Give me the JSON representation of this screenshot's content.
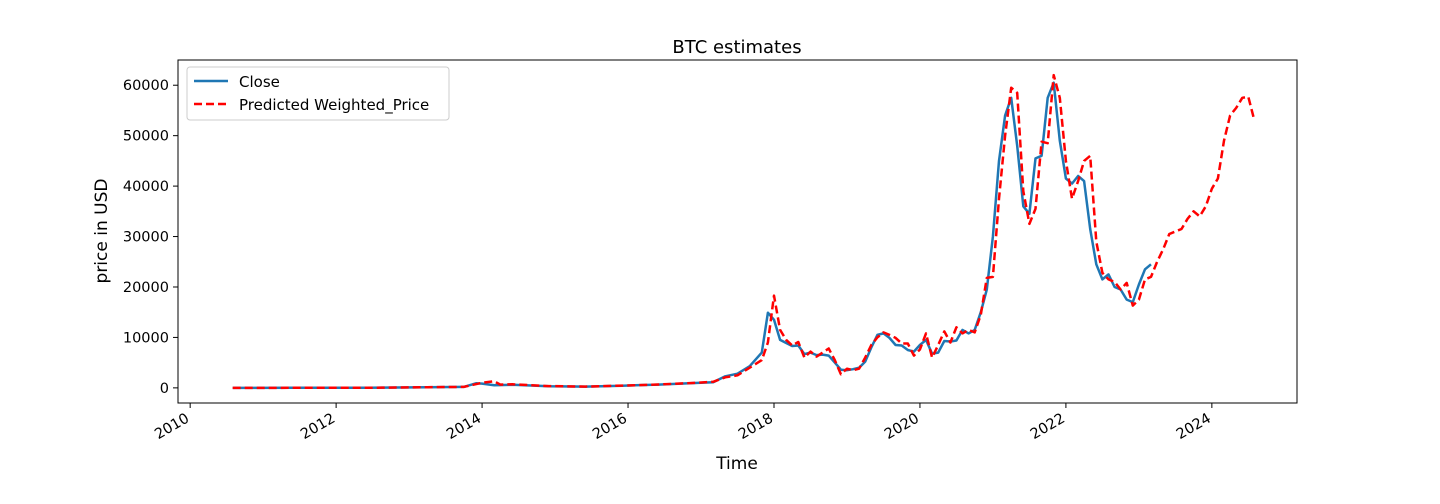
{
  "chart_data": {
    "type": "line",
    "title": "BTC estimates",
    "xlabel": "Time",
    "ylabel": "price in USD",
    "xlim": [
      "2009-11-01",
      "2025-03-01"
    ],
    "ylim": [
      -3000,
      65000
    ],
    "x_ticks": [
      "2010",
      "2012",
      "2014",
      "2016",
      "2018",
      "2020",
      "2022",
      "2024"
    ],
    "y_ticks": [
      "0",
      "10000",
      "20000",
      "30000",
      "40000",
      "50000",
      "60000"
    ],
    "grid": false,
    "legend_position": "top-left",
    "series": [
      {
        "name": "Close",
        "color": "#1f77b4",
        "style": "solid",
        "points": [
          [
            "2010-08-01",
            0
          ],
          [
            "2011-06-01",
            15
          ],
          [
            "2012-06-01",
            6
          ],
          [
            "2013-04-01",
            130
          ],
          [
            "2013-10-01",
            200
          ],
          [
            "2013-12-01",
            900
          ],
          [
            "2014-01-01",
            850
          ],
          [
            "2014-03-01",
            500
          ],
          [
            "2014-06-01",
            600
          ],
          [
            "2014-12-01",
            320
          ],
          [
            "2015-06-01",
            250
          ],
          [
            "2015-12-01",
            430
          ],
          [
            "2016-06-01",
            650
          ],
          [
            "2016-12-01",
            960
          ],
          [
            "2017-03-01",
            1100
          ],
          [
            "2017-05-01",
            2300
          ],
          [
            "2017-07-01",
            2800
          ],
          [
            "2017-09-01",
            4300
          ],
          [
            "2017-11-01",
            7000
          ],
          [
            "2017-12-01",
            14900
          ],
          [
            "2018-01-01",
            13500
          ],
          [
            "2018-02-01",
            9500
          ],
          [
            "2018-03-01",
            8900
          ],
          [
            "2018-04-01",
            8300
          ],
          [
            "2018-05-01",
            8400
          ],
          [
            "2018-06-01",
            6700
          ],
          [
            "2018-07-01",
            7000
          ],
          [
            "2018-08-01",
            6500
          ],
          [
            "2018-09-01",
            6600
          ],
          [
            "2018-10-01",
            6400
          ],
          [
            "2018-11-01",
            5000
          ],
          [
            "2018-12-01",
            3600
          ],
          [
            "2019-01-01",
            3500
          ],
          [
            "2019-02-01",
            3700
          ],
          [
            "2019-03-01",
            4000
          ],
          [
            "2019-04-01",
            5200
          ],
          [
            "2019-05-01",
            8000
          ],
          [
            "2019-06-01",
            10500
          ],
          [
            "2019-07-01",
            10800
          ],
          [
            "2019-08-01",
            9900
          ],
          [
            "2019-09-01",
            8500
          ],
          [
            "2019-10-01",
            8400
          ],
          [
            "2019-11-01",
            7500
          ],
          [
            "2019-12-01",
            7200
          ],
          [
            "2020-01-01",
            8500
          ],
          [
            "2020-02-01",
            9500
          ],
          [
            "2020-03-01",
            6800
          ],
          [
            "2020-04-01",
            7000
          ],
          [
            "2020-05-01",
            9300
          ],
          [
            "2020-06-01",
            9200
          ],
          [
            "2020-07-01",
            9400
          ],
          [
            "2020-08-01",
            11500
          ],
          [
            "2020-09-01",
            10800
          ],
          [
            "2020-10-01",
            11500
          ],
          [
            "2020-11-01",
            15000
          ],
          [
            "2020-12-01",
            19500
          ],
          [
            "2021-01-01",
            30000
          ],
          [
            "2021-02-01",
            45000
          ],
          [
            "2021-03-01",
            54000
          ],
          [
            "2021-04-01",
            57500
          ],
          [
            "2021-05-01",
            48000
          ],
          [
            "2021-06-01",
            36000
          ],
          [
            "2021-07-01",
            34500
          ],
          [
            "2021-08-01",
            45500
          ],
          [
            "2021-09-01",
            46000
          ],
          [
            "2021-10-01",
            57500
          ],
          [
            "2021-11-01",
            60500
          ],
          [
            "2021-12-01",
            49000
          ],
          [
            "2022-01-01",
            41500
          ],
          [
            "2022-02-01",
            40500
          ],
          [
            "2022-03-01",
            42000
          ],
          [
            "2022-04-01",
            41000
          ],
          [
            "2022-05-01",
            31500
          ],
          [
            "2022-06-01",
            24500
          ],
          [
            "2022-07-01",
            21500
          ],
          [
            "2022-08-01",
            22500
          ],
          [
            "2022-09-01",
            20000
          ],
          [
            "2022-10-01",
            19500
          ],
          [
            "2022-11-01",
            17500
          ],
          [
            "2022-12-01",
            17000
          ],
          [
            "2023-01-01",
            20500
          ],
          [
            "2023-02-01",
            23500
          ],
          [
            "2023-03-01",
            24500
          ]
        ]
      },
      {
        "name": "Predicted Weighted_Price",
        "color": "#ff0000",
        "style": "dashed",
        "points": [
          [
            "2010-08-01",
            0
          ],
          [
            "2011-06-01",
            15
          ],
          [
            "2012-06-01",
            6
          ],
          [
            "2013-04-01",
            130
          ],
          [
            "2013-10-01",
            200
          ],
          [
            "2014-01-01",
            1000
          ],
          [
            "2014-03-01",
            1300
          ],
          [
            "2014-04-01",
            650
          ],
          [
            "2014-06-01",
            700
          ],
          [
            "2014-12-01",
            350
          ],
          [
            "2015-06-01",
            260
          ],
          [
            "2015-12-01",
            440
          ],
          [
            "2016-06-01",
            660
          ],
          [
            "2016-12-01",
            980
          ],
          [
            "2017-03-01",
            1200
          ],
          [
            "2017-05-01",
            2100
          ],
          [
            "2017-07-01",
            2500
          ],
          [
            "2017-09-01",
            4000
          ],
          [
            "2017-11-01",
            5500
          ],
          [
            "2017-12-01",
            9000
          ],
          [
            "2018-01-01",
            18300
          ],
          [
            "2018-02-01",
            11500
          ],
          [
            "2018-03-01",
            9500
          ],
          [
            "2018-04-01",
            8400
          ],
          [
            "2018-05-01",
            9100
          ],
          [
            "2018-06-01",
            6000
          ],
          [
            "2018-07-01",
            7200
          ],
          [
            "2018-08-01",
            6200
          ],
          [
            "2018-09-01",
            7000
          ],
          [
            "2018-10-01",
            7800
          ],
          [
            "2018-11-01",
            5500
          ],
          [
            "2018-12-01",
            2700
          ],
          [
            "2019-01-01",
            3800
          ],
          [
            "2019-02-01",
            3500
          ],
          [
            "2019-03-01",
            3800
          ],
          [
            "2019-04-01",
            6000
          ],
          [
            "2019-05-01",
            8500
          ],
          [
            "2019-06-01",
            10000
          ],
          [
            "2019-07-01",
            11000
          ],
          [
            "2019-08-01",
            10500
          ],
          [
            "2019-09-01",
            9900
          ],
          [
            "2019-10-01",
            8800
          ],
          [
            "2019-11-01",
            8800
          ],
          [
            "2019-12-01",
            6400
          ],
          [
            "2020-01-01",
            7600
          ],
          [
            "2020-02-01",
            10800
          ],
          [
            "2020-03-01",
            6000
          ],
          [
            "2020-04-01",
            8500
          ],
          [
            "2020-05-01",
            11200
          ],
          [
            "2020-06-01",
            9000
          ],
          [
            "2020-07-01",
            12000
          ],
          [
            "2020-08-01",
            10800
          ],
          [
            "2020-09-01",
            11500
          ],
          [
            "2020-10-01",
            11000
          ],
          [
            "2020-11-01",
            14500
          ],
          [
            "2020-12-01",
            21800
          ],
          [
            "2021-01-01",
            22000
          ],
          [
            "2021-02-01",
            37500
          ],
          [
            "2021-03-01",
            50000
          ],
          [
            "2021-04-01",
            59500
          ],
          [
            "2021-05-01",
            58500
          ],
          [
            "2021-06-01",
            39000
          ],
          [
            "2021-07-01",
            32500
          ],
          [
            "2021-08-01",
            35500
          ],
          [
            "2021-09-01",
            48800
          ],
          [
            "2021-10-01",
            48500
          ],
          [
            "2021-11-01",
            62000
          ],
          [
            "2021-12-01",
            57500
          ],
          [
            "2022-01-01",
            45000
          ],
          [
            "2022-02-01",
            37500
          ],
          [
            "2022-03-01",
            41000
          ],
          [
            "2022-04-01",
            45000
          ],
          [
            "2022-05-01",
            46000
          ],
          [
            "2022-06-01",
            29000
          ],
          [
            "2022-07-01",
            22800
          ],
          [
            "2022-08-01",
            21500
          ],
          [
            "2022-09-01",
            21000
          ],
          [
            "2022-10-01",
            19500
          ],
          [
            "2022-11-01",
            20800
          ],
          [
            "2022-12-01",
            16300
          ],
          [
            "2023-01-01",
            17500
          ],
          [
            "2023-02-01",
            21500
          ],
          [
            "2023-03-01",
            22000
          ],
          [
            "2023-04-01",
            25000
          ],
          [
            "2023-05-01",
            27500
          ],
          [
            "2023-06-01",
            30500
          ],
          [
            "2023-07-01",
            31000
          ],
          [
            "2023-08-01",
            31500
          ],
          [
            "2023-09-01",
            33500
          ],
          [
            "2023-10-01",
            35000
          ],
          [
            "2023-11-01",
            34000
          ],
          [
            "2023-12-01",
            36000
          ],
          [
            "2024-01-01",
            39500
          ],
          [
            "2024-02-01",
            41500
          ],
          [
            "2024-03-01",
            49000
          ],
          [
            "2024-04-01",
            54000
          ],
          [
            "2024-05-01",
            55500
          ],
          [
            "2024-06-01",
            57500
          ],
          [
            "2024-07-01",
            57700
          ],
          [
            "2024-08-01",
            53000
          ]
        ]
      }
    ]
  }
}
